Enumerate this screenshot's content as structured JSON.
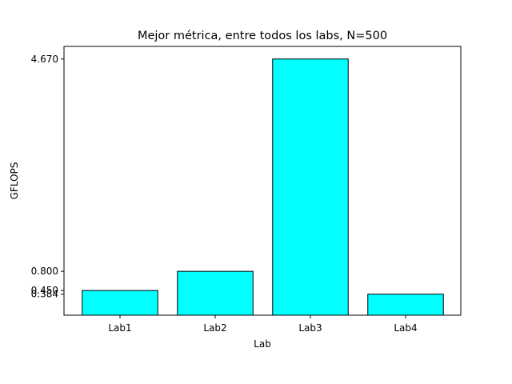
{
  "chart_data": {
    "type": "bar",
    "title": "Mejor métrica, entre todos los labs, N=500",
    "xlabel": "Lab",
    "ylabel": "GFLOPS",
    "categories": [
      "Lab1",
      "Lab2",
      "Lab3",
      "Lab4"
    ],
    "values": [
      0.45,
      0.8,
      4.67,
      0.384
    ],
    "ytick_labels": [
      "0.384",
      "0.450",
      "0.800",
      "4.670"
    ],
    "ylim": [
      0,
      4.9
    ],
    "grid": false,
    "bar_color": "#00ffff",
    "bar_edge_color": "#000000"
  }
}
